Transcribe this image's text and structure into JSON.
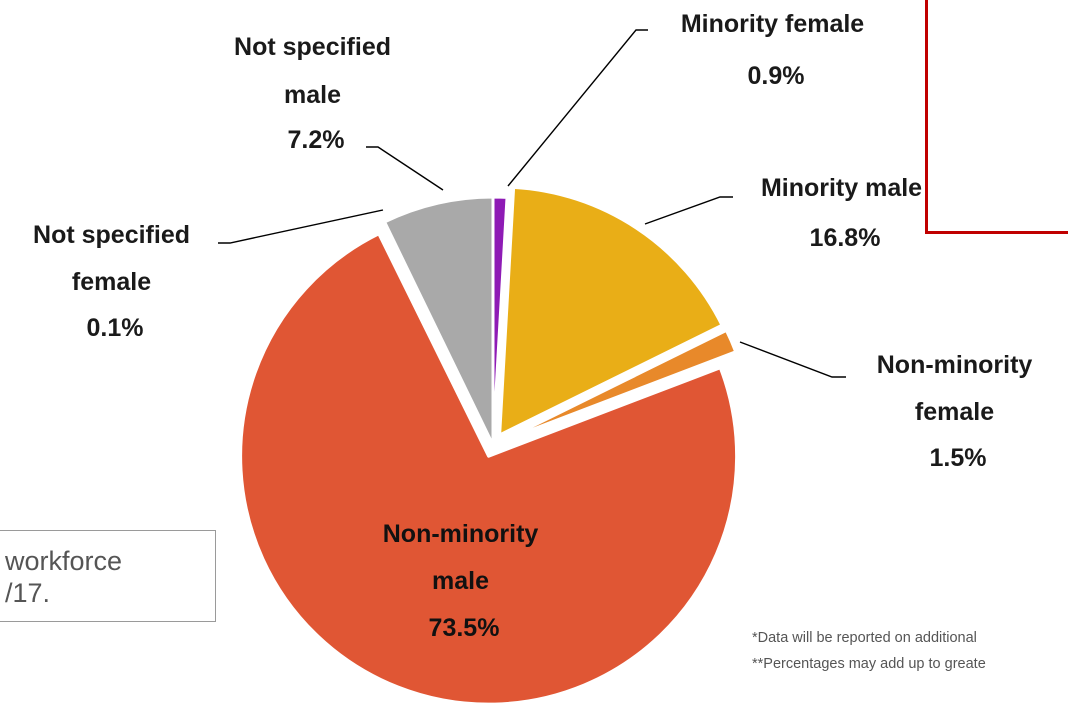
{
  "chart_data": {
    "type": "pie",
    "slices": [
      {
        "label": "Minority female",
        "value": 0.9,
        "pct_label": "0.9%",
        "color": "#8e1bb5",
        "explode": false
      },
      {
        "label": "Minority male",
        "value": 16.8,
        "pct_label": "16.8%",
        "color": "#e9ae17",
        "explode": true
      },
      {
        "label": "Non-minority female",
        "value": 1.5,
        "pct_label": "1.5%",
        "color": "#e8892a",
        "explode": true
      },
      {
        "label": "Non-minority male",
        "value": 73.5,
        "pct_label": "73.5%",
        "color": "#e05634",
        "explode": true
      },
      {
        "label": "Not specified female",
        "value": 0.1,
        "pct_label": "0.1%",
        "color": "#1ea45b",
        "explode": false
      },
      {
        "label": "Not specified male",
        "value": 7.2,
        "pct_label": "7.2%",
        "color": "#a9a9a9",
        "explode": false
      }
    ],
    "label_lines": {
      "Minority female": [
        "Minority female",
        "0.9%"
      ],
      "Minority male": [
        "Minority male",
        "16.8%"
      ],
      "Non-minority female": [
        "Non-minority",
        "female",
        "1.5%"
      ],
      "Non-minority male": [
        "Non-minority",
        "male",
        "73.5%"
      ],
      "Not specified female": [
        "Not specified",
        "female",
        "0.1%"
      ],
      "Not specified male": [
        "Not specified",
        "male",
        "7.2%"
      ]
    }
  },
  "notes": {
    "box_line1": "workforce",
    "box_line2": "/17.",
    "footnote1": "*Data will be reported on additional",
    "footnote2": "**Percentages may add up to greate"
  }
}
